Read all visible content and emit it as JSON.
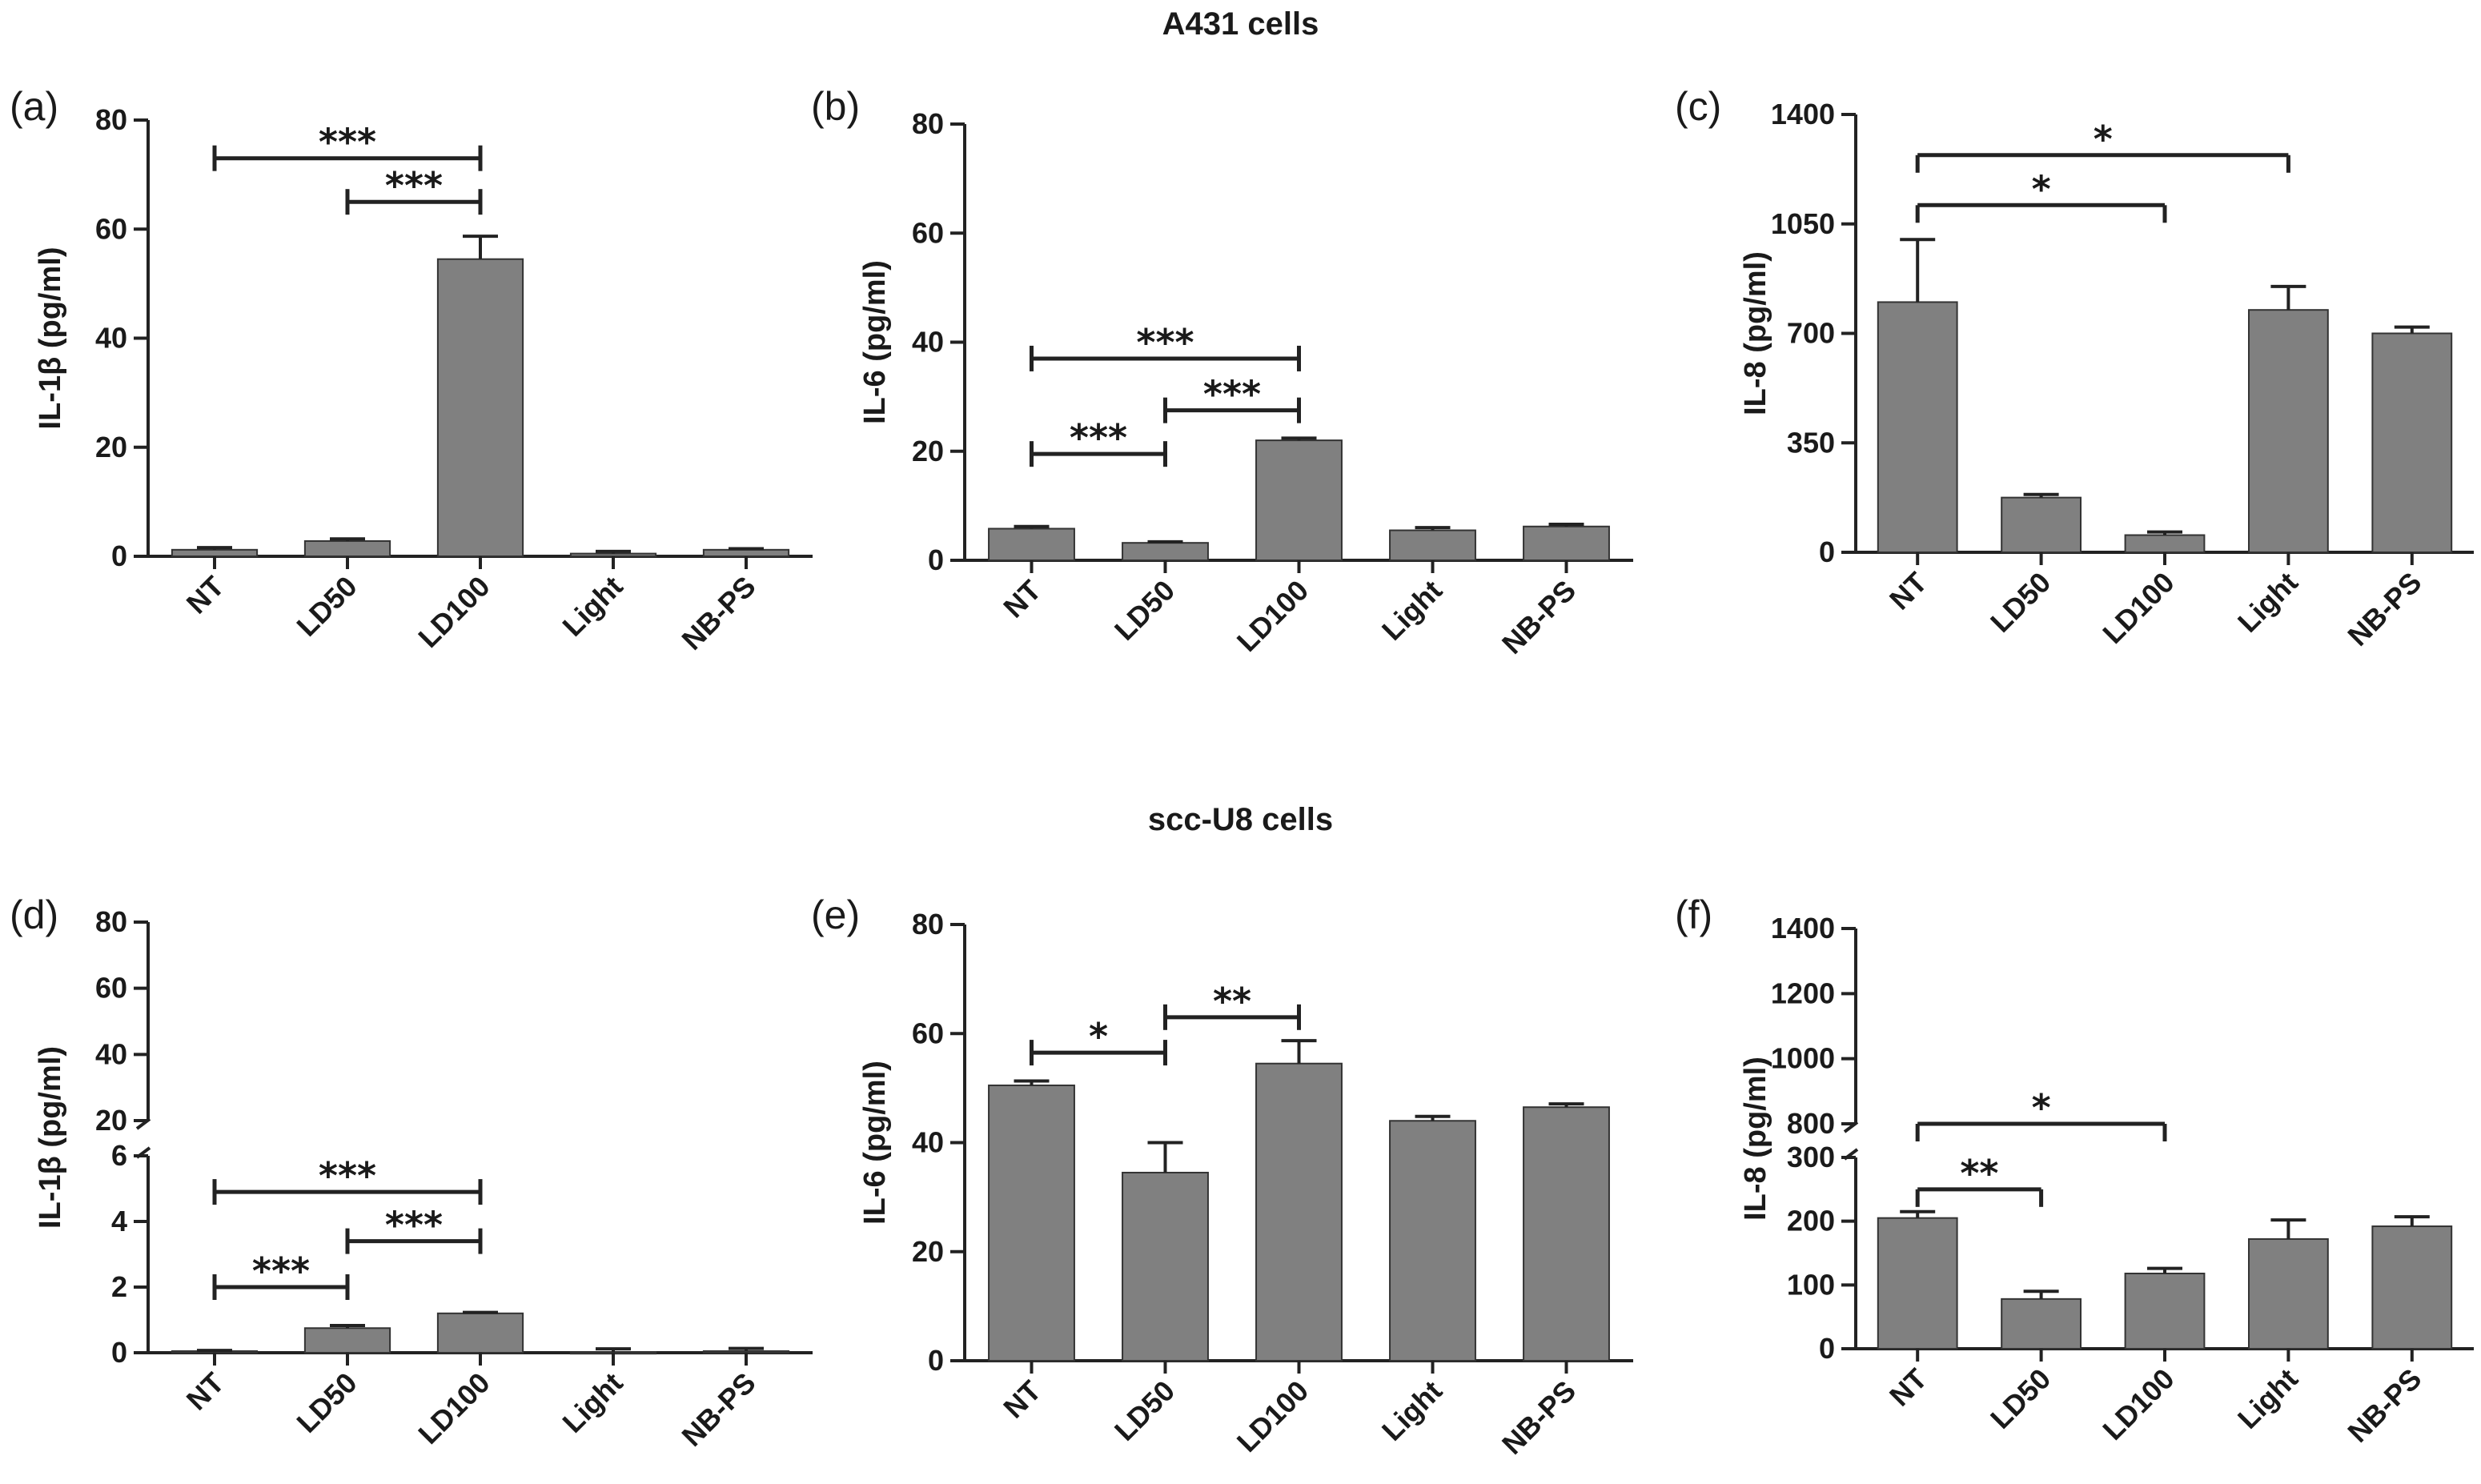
{
  "figure": {
    "top_title": "A431 cells",
    "bottom_title": "scc-U8 cells"
  },
  "colors": {
    "bar": "#808080",
    "axis": "#222222"
  },
  "chart_data": [
    {
      "panel": "(a)",
      "type": "bar",
      "ylabel": "IL-1β (pg/ml)",
      "categories": [
        "NT",
        "LD50",
        "LD100",
        "Light",
        "NB-PS"
      ],
      "values": [
        1.2,
        2.8,
        54.5,
        0.5,
        1.2
      ],
      "errors": [
        0.4,
        0.4,
        4.2,
        0.4,
        0.2
      ],
      "ylim": [
        0,
        80
      ],
      "yticks": [
        0,
        20,
        40,
        60,
        80
      ],
      "significance": [
        {
          "from": 0,
          "to": 2,
          "label": "***",
          "y": 73,
          "capped": true
        },
        {
          "from": 1,
          "to": 2,
          "label": "***",
          "y": 65,
          "capped": true
        }
      ]
    },
    {
      "panel": "(b)",
      "type": "bar",
      "ylabel": "IL-6 (pg/ml)",
      "categories": [
        "NT",
        "LD50",
        "LD100",
        "Light",
        "NB-PS"
      ],
      "values": [
        5.8,
        3.2,
        22,
        5.5,
        6.2
      ],
      "errors": [
        0.4,
        0.2,
        0.4,
        0.5,
        0.4
      ],
      "ylim": [
        0,
        80
      ],
      "yticks": [
        0,
        20,
        40,
        60,
        80
      ],
      "significance": [
        {
          "from": 0,
          "to": 2,
          "label": "***",
          "y": 37,
          "capped": true
        },
        {
          "from": 1,
          "to": 2,
          "label": "***",
          "y": 27.5,
          "capped": true
        },
        {
          "from": 0,
          "to": 1,
          "label": "***",
          "y": 19.5,
          "capped": true
        }
      ]
    },
    {
      "panel": "(c)",
      "type": "bar",
      "ylabel": "IL-8 (pg/ml)",
      "categories": [
        "NT",
        "LD50",
        "LD100",
        "Light",
        "NB-PS"
      ],
      "values": [
        800,
        175,
        55,
        775,
        700
      ],
      "errors": [
        200,
        10,
        10,
        75,
        20
      ],
      "ylim": [
        0,
        1400
      ],
      "yticks": [
        0,
        350,
        700,
        1050,
        1400
      ],
      "significance": [
        {
          "from": 0,
          "to": 3,
          "label": "*",
          "y": 1270,
          "capped": false
        },
        {
          "from": 0,
          "to": 2,
          "label": "*",
          "y": 1110,
          "capped": false
        }
      ]
    },
    {
      "panel": "(d)",
      "type": "bar",
      "ylabel": "IL-1β (pg/ml)",
      "categories": [
        "NT",
        "LD50",
        "LD100",
        "Light",
        "NB-PS"
      ],
      "values": [
        0.05,
        0.75,
        1.2,
        0.02,
        0.05
      ],
      "errors": [
        0.02,
        0.08,
        0.03,
        0.1,
        0.08
      ],
      "ylim": [
        0,
        80
      ],
      "yticks": [
        0,
        2,
        4,
        6,
        20,
        40,
        60,
        80
      ],
      "axis_break": {
        "lower": [
          0,
          6
        ],
        "upper": [
          20,
          80
        ]
      },
      "significance": [
        {
          "from": 0,
          "to": 2,
          "label": "***",
          "y": 4.9,
          "capped": true
        },
        {
          "from": 1,
          "to": 2,
          "label": "***",
          "y": 3.4,
          "capped": true
        },
        {
          "from": 0,
          "to": 1,
          "label": "***",
          "y": 2.0,
          "capped": true
        }
      ]
    },
    {
      "panel": "(e)",
      "type": "bar",
      "ylabel": "IL-6 (pg/ml)",
      "categories": [
        "NT",
        "LD50",
        "LD100",
        "Light",
        "NB-PS"
      ],
      "values": [
        50.5,
        34.5,
        54.5,
        44,
        46.5
      ],
      "errors": [
        0.8,
        5.5,
        4.2,
        0.8,
        0.6
      ],
      "ylim": [
        0,
        80
      ],
      "yticks": [
        0,
        20,
        40,
        60,
        80
      ],
      "significance": [
        {
          "from": 0,
          "to": 1,
          "label": "*",
          "y": 56.5,
          "capped": true
        },
        {
          "from": 1,
          "to": 2,
          "label": "**",
          "y": 63,
          "capped": true
        }
      ]
    },
    {
      "panel": "(f)",
      "type": "bar",
      "ylabel": "IL-8 (pg/ml)",
      "categories": [
        "NT",
        "LD50",
        "LD100",
        "Light",
        "NB-PS"
      ],
      "values": [
        205,
        78,
        118,
        172,
        192
      ],
      "errors": [
        10,
        12,
        8,
        30,
        15
      ],
      "ylim": [
        0,
        1400
      ],
      "yticks": [
        0,
        100,
        200,
        300,
        800,
        1000,
        1200,
        1400
      ],
      "axis_break": {
        "lower": [
          0,
          300
        ],
        "upper": [
          800,
          1400
        ]
      },
      "significance": [
        {
          "from": 0,
          "to": 2,
          "label": "*",
          "y": 800,
          "capped": false
        },
        {
          "from": 0,
          "to": 1,
          "label": "**",
          "y": 250,
          "capped": false
        }
      ]
    }
  ]
}
